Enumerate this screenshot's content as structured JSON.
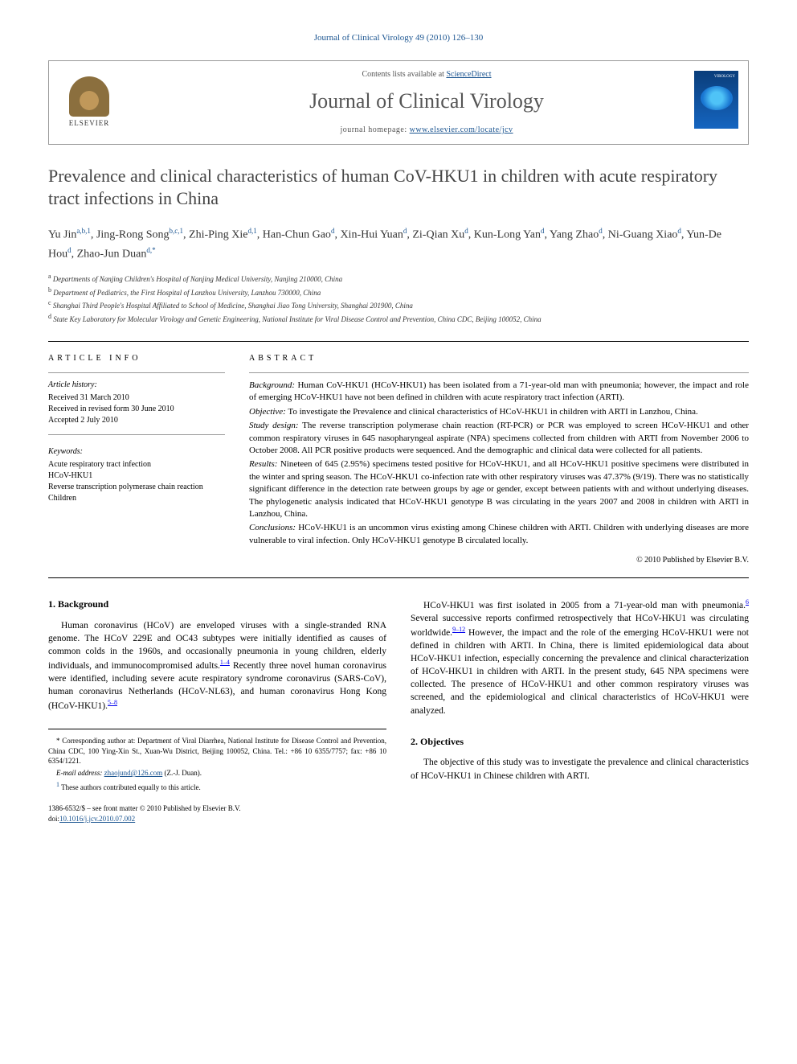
{
  "journal_header": "Journal of Clinical Virology 49 (2010) 126–130",
  "header_box": {
    "contents_prefix": "Contents lists available at ",
    "contents_link": "ScienceDirect",
    "journal_title": "Journal of Clinical Virology",
    "homepage_prefix": "journal homepage: ",
    "homepage_url": "www.elsevier.com/locate/jcv",
    "elsevier_label": "ELSEVIER",
    "cover_label": "VIROLOGY"
  },
  "title": "Prevalence and clinical characteristics of human CoV-HKU1 in children with acute respiratory tract infections in China",
  "authors_html": "Yu Jin<sup>a,b,1</sup>, Jing-Rong Song<sup>b,c,1</sup>, Zhi-Ping Xie<sup>d,1</sup>, Han-Chun Gao<sup>d</sup>, Xin-Hui Yuan<sup>d</sup>, Zi-Qian Xu<sup>d</sup>, Kun-Long Yan<sup>d</sup>, Yang Zhao<sup>d</sup>, Ni-Guang Xiao<sup>d</sup>, Yun-De Hou<sup>d</sup>, Zhao-Jun Duan<sup>d,*</sup>",
  "affiliations": {
    "a": "Departments of Nanjing Children's Hospital of Nanjing Medical University, Nanjing 210000, China",
    "b": "Department of Pediatrics, the First Hospital of Lanzhou University, Lanzhou 730000, China",
    "c": "Shanghai Third People's Hospital Affiliated to School of Medicine, Shanghai Jiao Tong University, Shanghai 201900, China",
    "d": "State Key Laboratory for Molecular Virology and Genetic Engineering, National Institute for Viral Disease Control and Prevention, China CDC, Beijing 100052, China"
  },
  "article_info": {
    "heading": "article info",
    "history_label": "Article history:",
    "received": "Received 31 March 2010",
    "revised": "Received in revised form 30 June 2010",
    "accepted": "Accepted 2 July 2010",
    "keywords_label": "Keywords:",
    "keywords": [
      "Acute respiratory tract infection",
      "HCoV-HKU1",
      "Reverse transcription polymerase chain reaction",
      "Children"
    ]
  },
  "abstract": {
    "heading": "abstract",
    "background_label": "Background:",
    "background": "Human CoV-HKU1 (HCoV-HKU1) has been isolated from a 71-year-old man with pneumonia; however, the impact and role of emerging HCoV-HKU1 have not been defined in children with acute respiratory tract infection (ARTI).",
    "objective_label": "Objective:",
    "objective": "To investigate the Prevalence and clinical characteristics of HCoV-HKU1 in children with ARTI in Lanzhou, China.",
    "study_label": "Study design:",
    "study": "The reverse transcription polymerase chain reaction (RT-PCR) or PCR was employed to screen HCoV-HKU1 and other common respiratory viruses in 645 nasopharyngeal aspirate (NPA) specimens collected from children with ARTI from November 2006 to October 2008. All PCR positive products were sequenced. And the demographic and clinical data were collected for all patients.",
    "results_label": "Results:",
    "results": "Nineteen of 645 (2.95%) specimens tested positive for HCoV-HKU1, and all HCoV-HKU1 positive specimens were distributed in the winter and spring season. The HCoV-HKU1 co-infection rate with other respiratory viruses was 47.37% (9/19). There was no statistically significant difference in the detection rate between groups by age or gender, except between patients with and without underlying diseases. The phylogenetic analysis indicated that HCoV-HKU1 genotype B was circulating in the years 2007 and 2008 in children with ARTI in Lanzhou, China.",
    "conclusions_label": "Conclusions:",
    "conclusions": "HCoV-HKU1 is an uncommon virus existing among Chinese children with ARTI. Children with underlying diseases are more vulnerable to viral infection. Only HCoV-HKU1 genotype B circulated locally.",
    "copyright": "© 2010 Published by Elsevier B.V."
  },
  "body": {
    "sec1_heading": "1. Background",
    "sec1_p1": "Human coronavirus (HCoV) are enveloped viruses with a single-stranded RNA genome. The HCoV 229E and OC43 subtypes were initially identified as causes of common colds in the 1960s, and occasionally pneumonia in young children, elderly individuals, and immunocompromised adults.",
    "sec1_p1_ref": "1–4",
    "sec1_p1b": " Recently three novel human coronavirus were identified, including severe acute respiratory syndrome coronavirus (SARS-CoV), human coronavirus Netherlands (HCoV-NL63), and human coronavirus Hong Kong (HCoV-HKU1).",
    "sec1_p1b_ref": "5–8",
    "sec1_p2a": "HCoV-HKU1 was first isolated in 2005 from a 71-year-old man with pneumonia.",
    "sec1_p2a_ref": "6",
    "sec1_p2b": " Several successive reports confirmed retrospectively that HCoV-HKU1 was circulating worldwide.",
    "sec1_p2b_ref": "9–12",
    "sec1_p2c": " However, the impact and the role of the emerging HCoV-HKU1 were not defined in children with ARTI. In China, there is limited epidemiological data about HCoV-HKU1 infection, especially concerning the prevalence and clinical characterization of HCoV-HKU1 in children with ARTI. In the present study, 645 NPA specimens were collected. The presence of HCoV-HKU1 and other common respiratory viruses was screened, and the epidemiological and clinical characteristics of HCoV-HKU1 were analyzed.",
    "sec2_heading": "2. Objectives",
    "sec2_p1": "The objective of this study was to investigate the prevalence and clinical characteristics of HCoV-HKU1 in Chinese children with ARTI."
  },
  "footnotes": {
    "corr": "* Corresponding author at: Department of Viral Diarrhea, National Institute for Disease Control and Prevention, China CDC, 100 Ying-Xin St., Xuan-Wu District, Beijing 100052, China. Tel.: +86 10 6355/7757; fax: +86 10 6354/1221.",
    "email_label": "E-mail address:",
    "email": "zhaojund@126.com",
    "email_suffix": "(Z.-J. Duan).",
    "equal": "These authors contributed equally to this article.",
    "equal_marker": "1"
  },
  "bottom": {
    "line1": "1386-6532/$ – see front matter © 2010 Published by Elsevier B.V.",
    "doi_label": "doi:",
    "doi": "10.1016/j.jcv.2010.07.002"
  },
  "colors": {
    "link": "#1a5490",
    "text": "#000000",
    "title_gray": "#444444"
  }
}
